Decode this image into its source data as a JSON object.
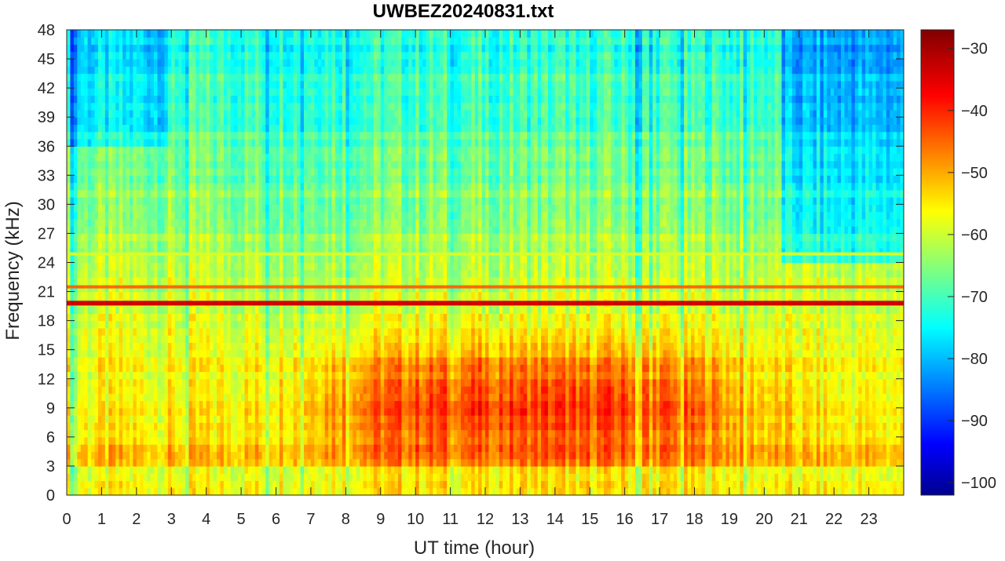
{
  "chart_data": {
    "type": "heatmap",
    "title": "UWBEZ20240831.txt",
    "xlabel": "UT time (hour)",
    "ylabel": "Frequency (kHz)",
    "xlim": [
      0,
      24
    ],
    "ylim": [
      0,
      48
    ],
    "x_ticks": [
      0,
      1,
      2,
      3,
      4,
      5,
      6,
      7,
      8,
      9,
      10,
      11,
      12,
      13,
      14,
      15,
      16,
      17,
      18,
      19,
      20,
      21,
      22,
      23
    ],
    "y_ticks": [
      0,
      3,
      6,
      9,
      12,
      15,
      18,
      21,
      24,
      27,
      30,
      33,
      36,
      39,
      42,
      45,
      48
    ],
    "colorbar": {
      "ticks": [
        -30,
        -40,
        -50,
        -60,
        -70,
        -80,
        -90,
        -100
      ],
      "range": [
        -102,
        -27
      ],
      "colormap": "jet"
    },
    "features": [
      {
        "kind": "narrowband-line",
        "freq_khz": 19.8,
        "level_db": -33
      },
      {
        "kind": "narrowband-line",
        "freq_khz": 21.4,
        "level_db": -44
      },
      {
        "kind": "narrowband-line",
        "freq_khz": 24.8,
        "level_db": -58
      },
      {
        "kind": "broadband-maximum",
        "time_hour_range": [
          7,
          19.5
        ],
        "freq_khz_range": [
          3,
          16
        ],
        "peak_db": -45
      }
    ],
    "grid": false
  }
}
